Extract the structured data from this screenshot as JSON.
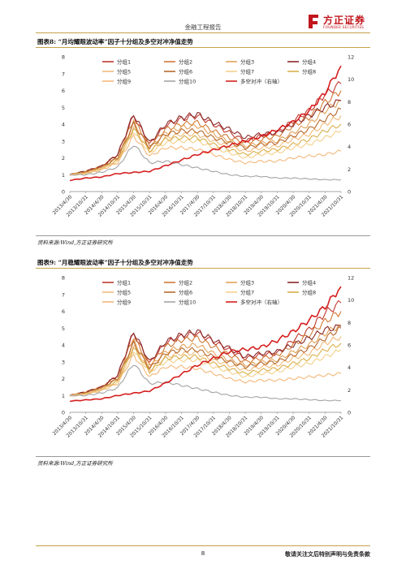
{
  "header": {
    "title": "金融工程报告",
    "logo_cn": "方正证券",
    "logo_en": "FOUNDER SECURITIES"
  },
  "figures": [
    {
      "title": "图表8:  “月均耀眼波动率”因子十分组及多空对冲净值走势",
      "source": "资料来源:Wind,方正证券研究所"
    },
    {
      "title": "图表9:  “月稳耀眼波动率”因子十分组及多空对冲净值走势",
      "source": "资料来源:Wind,方正证券研究所"
    }
  ],
  "footer": {
    "page": "8",
    "disclaimer": "敬请关注文后特别声明与免责条款"
  },
  "chart_data": [
    {
      "type": "line",
      "x": [
        "2013/4/30",
        "2013/10/31",
        "2014/4/30",
        "2014/10/31",
        "2015/4/30",
        "2015/10/31",
        "2016/4/30",
        "2016/10/31",
        "2017/4/30",
        "2017/10/31",
        "2018/4/30",
        "2018/10/31",
        "2019/4/30",
        "2019/10/31",
        "2020/4/30",
        "2020/10/31",
        "2021/4/30",
        "2021/10/31"
      ],
      "ylim": [
        0,
        8
      ],
      "ylim_right": [
        0,
        12
      ],
      "yticks": [
        0,
        1,
        2,
        3,
        4,
        5,
        6,
        7,
        8
      ],
      "yticks_right": [
        0,
        2,
        4,
        6,
        8,
        10,
        12
      ],
      "colors": [
        "#c0382e",
        "#d07a38",
        "#e2a35a",
        "#8b2a2a",
        "#f0bb7c",
        "#b86a2e",
        "#f3d08a",
        "#d9b04a",
        "#f4b87a",
        "#a3a3a3",
        "#d62020"
      ],
      "legend": [
        "分组1",
        "分组2",
        "分组3",
        "分组4",
        "分组5",
        "分组6",
        "分组7",
        "分组8",
        "分组9",
        "分组10",
        "多空对冲（右轴）"
      ],
      "series": [
        {
          "name": "分组1",
          "values": [
            1,
            1.2,
            1.5,
            2.2,
            4.5,
            2.8,
            3.9,
            4.3,
            4.5,
            4.0,
            3.5,
            3.0,
            3.3,
            3.5,
            4.2,
            4.8,
            5.8,
            6.4
          ]
        },
        {
          "name": "分组2",
          "values": [
            1,
            1.2,
            1.5,
            2.1,
            4.3,
            2.7,
            3.7,
            4.0,
            4.1,
            3.6,
            3.2,
            2.9,
            3.1,
            3.3,
            3.9,
            4.4,
            5.3,
            6.0
          ]
        },
        {
          "name": "分组3",
          "values": [
            1,
            1.15,
            1.45,
            2.0,
            4.1,
            2.6,
            3.5,
            3.8,
            3.9,
            3.4,
            3.0,
            2.7,
            2.9,
            3.0,
            3.5,
            4.0,
            4.8,
            5.4
          ]
        },
        {
          "name": "分组4",
          "values": [
            1,
            1.2,
            1.5,
            2.2,
            4.6,
            2.9,
            4.0,
            4.4,
            4.6,
            4.1,
            3.7,
            3.2,
            3.4,
            3.5,
            4.0,
            4.5,
            5.0,
            5.4
          ]
        },
        {
          "name": "分组5",
          "values": [
            1,
            1.1,
            1.4,
            1.9,
            3.9,
            2.4,
            3.2,
            3.4,
            3.4,
            3.0,
            2.7,
            2.4,
            2.6,
            2.7,
            3.1,
            3.4,
            4.0,
            4.5
          ]
        },
        {
          "name": "分组6",
          "values": [
            1,
            1.15,
            1.45,
            2.0,
            4.0,
            2.6,
            3.4,
            3.6,
            3.6,
            3.2,
            2.9,
            2.6,
            2.8,
            2.9,
            3.3,
            3.7,
            4.3,
            4.9
          ]
        },
        {
          "name": "分组7",
          "values": [
            1,
            1.1,
            1.35,
            1.8,
            3.6,
            2.3,
            2.9,
            3.0,
            3.0,
            2.6,
            2.3,
            2.0,
            2.2,
            2.3,
            2.6,
            2.8,
            3.2,
            3.6
          ]
        },
        {
          "name": "分组8",
          "values": [
            1,
            1.1,
            1.35,
            1.85,
            3.7,
            2.4,
            3.1,
            3.2,
            3.2,
            2.8,
            2.5,
            2.2,
            2.4,
            2.5,
            2.8,
            3.1,
            3.6,
            4.0
          ]
        },
        {
          "name": "分组9",
          "values": [
            1,
            1.05,
            1.3,
            1.7,
            3.3,
            2.1,
            2.6,
            2.6,
            2.5,
            2.2,
            1.9,
            1.7,
            1.8,
            1.8,
            2.0,
            2.1,
            2.2,
            2.4
          ]
        },
        {
          "name": "分组10",
          "values": [
            1,
            1.0,
            1.15,
            1.45,
            2.8,
            1.7,
            1.8,
            1.6,
            1.4,
            1.2,
            1.0,
            0.9,
            0.9,
            0.8,
            0.8,
            0.75,
            0.7,
            0.7
          ]
        },
        {
          "name": "多空对冲（右轴）",
          "axis": "right",
          "values": [
            1,
            1.2,
            1.3,
            1.6,
            1.7,
            1.8,
            2.3,
            2.8,
            3.3,
            3.7,
            4.1,
            4.5,
            4.9,
            5.5,
            6.2,
            7.2,
            8.8,
            11.2
          ]
        }
      ]
    },
    {
      "type": "line",
      "x": [
        "2013/4/30",
        "2013/10/31",
        "2014/4/30",
        "2014/10/31",
        "2015/4/30",
        "2015/10/31",
        "2016/4/30",
        "2016/10/31",
        "2017/4/30",
        "2017/10/31",
        "2018/4/30",
        "2018/10/31",
        "2019/4/30",
        "2019/10/31",
        "2020/4/30",
        "2020/10/31",
        "2021/4/30",
        "2021/10/31"
      ],
      "ylim": [
        0,
        8
      ],
      "ylim_right": [
        0,
        12
      ],
      "yticks": [
        0,
        1,
        2,
        3,
        4,
        5,
        6,
        7,
        8
      ],
      "yticks_right": [
        0,
        2,
        4,
        6,
        8,
        10,
        12
      ],
      "colors": [
        "#c0382e",
        "#d07a38",
        "#e2a35a",
        "#8b2a2a",
        "#f0bb7c",
        "#b86a2e",
        "#f3d08a",
        "#d9b04a",
        "#f4b87a",
        "#a3a3a3",
        "#d62020"
      ],
      "legend": [
        "分组1",
        "分组2",
        "分组3",
        "分组4",
        "分组5",
        "分组6",
        "分组7",
        "分组8",
        "分组9",
        "分组10",
        "多空对冲（右轴）"
      ],
      "series": [
        {
          "name": "分组1",
          "values": [
            1,
            1.2,
            1.5,
            2.2,
            4.7,
            2.9,
            4.1,
            4.5,
            4.7,
            4.2,
            3.7,
            3.2,
            3.4,
            3.5,
            4.3,
            4.9,
            5.9,
            6.5
          ]
        },
        {
          "name": "分组2",
          "values": [
            1,
            1.2,
            1.5,
            2.1,
            4.5,
            2.8,
            3.9,
            4.3,
            4.4,
            3.9,
            3.4,
            3.0,
            3.2,
            3.4,
            4.0,
            4.6,
            5.4,
            6.0
          ]
        },
        {
          "name": "分组3",
          "values": [
            1,
            1.15,
            1.45,
            2.0,
            4.2,
            2.7,
            3.6,
            3.9,
            4.0,
            3.5,
            3.1,
            2.8,
            3.0,
            3.1,
            3.6,
            4.0,
            4.7,
            5.2
          ]
        },
        {
          "name": "分组4",
          "values": [
            1,
            1.2,
            1.5,
            2.2,
            4.8,
            3.0,
            4.2,
            4.6,
            4.8,
            4.3,
            3.8,
            3.3,
            3.5,
            3.6,
            4.0,
            4.4,
            4.9,
            5.1
          ]
        },
        {
          "name": "分组5",
          "values": [
            1,
            1.1,
            1.4,
            1.9,
            4.0,
            2.5,
            3.3,
            3.5,
            3.5,
            3.1,
            2.8,
            2.5,
            2.7,
            2.8,
            3.2,
            3.5,
            4.1,
            4.5
          ]
        },
        {
          "name": "分组6",
          "values": [
            1,
            1.15,
            1.45,
            2.0,
            4.1,
            2.6,
            3.5,
            3.7,
            3.7,
            3.3,
            3.0,
            2.7,
            2.9,
            3.0,
            3.4,
            3.8,
            4.4,
            5.0
          ]
        },
        {
          "name": "分组7",
          "values": [
            1,
            1.1,
            1.35,
            1.8,
            3.7,
            2.4,
            3.0,
            3.1,
            3.1,
            2.7,
            2.4,
            2.1,
            2.3,
            2.4,
            2.7,
            2.9,
            3.3,
            3.7
          ]
        },
        {
          "name": "分组8",
          "values": [
            1,
            1.1,
            1.35,
            1.85,
            3.8,
            2.4,
            3.2,
            3.3,
            3.3,
            2.9,
            2.6,
            2.3,
            2.5,
            2.6,
            2.9,
            3.2,
            3.7,
            4.1
          ]
        },
        {
          "name": "分组9",
          "values": [
            1,
            1.05,
            1.3,
            1.7,
            3.4,
            2.1,
            2.7,
            2.7,
            2.6,
            2.3,
            2.0,
            1.8,
            1.9,
            1.9,
            2.0,
            2.1,
            2.2,
            2.3
          ]
        },
        {
          "name": "分组10",
          "values": [
            1,
            1.0,
            1.15,
            1.45,
            2.9,
            1.7,
            1.8,
            1.6,
            1.4,
            1.2,
            1.0,
            0.9,
            0.9,
            0.8,
            0.8,
            0.75,
            0.7,
            0.7
          ]
        },
        {
          "name": "多空对冲（右轴）",
          "axis": "right",
          "values": [
            1,
            1.1,
            1.2,
            1.5,
            1.7,
            1.9,
            2.6,
            3.4,
            4.2,
            4.8,
            5.4,
            5.6,
            5.8,
            6.4,
            7.2,
            8.2,
            9.4,
            11.2
          ]
        }
      ]
    }
  ]
}
